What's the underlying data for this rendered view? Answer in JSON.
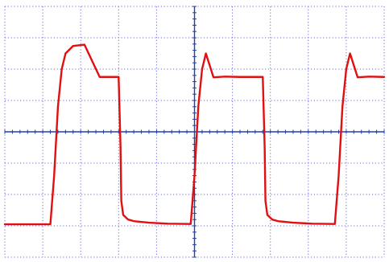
{
  "chart_data": {
    "type": "line",
    "title": "",
    "xlabel": "",
    "ylabel": "",
    "grid": true,
    "xlim": [
      0,
      10
    ],
    "ylim": [
      -4,
      4
    ],
    "divisions": {
      "x": 10,
      "y": 8
    },
    "colors": {
      "background": "#ffffff",
      "grid": "#6b6bd6",
      "axes": "#1f3fb0",
      "trace": "#e01010"
    },
    "series": [
      {
        "x": [
          0.0,
          1.2,
          1.3,
          1.4,
          1.5,
          1.6,
          1.8,
          2.1,
          2.5,
          3.0,
          3.05,
          3.07,
          3.12,
          3.25,
          3.4,
          3.8,
          4.3,
          4.9,
          5.0,
          5.1,
          5.2,
          5.3,
          5.5,
          5.8,
          6.2,
          6.8,
          6.85,
          6.87,
          6.92,
          7.05,
          7.2,
          7.6,
          8.1,
          8.7,
          8.8,
          8.9,
          9.0,
          9.1,
          9.3,
          9.6,
          10.0
        ],
        "y": [
          -2.95,
          -2.95,
          -1.4,
          0.8,
          2.0,
          2.5,
          2.74,
          2.78,
          1.75,
          1.75,
          -0.5,
          -2.2,
          -2.65,
          -2.8,
          -2.85,
          -2.9,
          -2.93,
          -2.94,
          -1.4,
          0.8,
          2.0,
          2.5,
          1.74,
          1.76,
          1.75,
          1.75,
          -0.5,
          -2.2,
          -2.65,
          -2.8,
          -2.85,
          -2.9,
          -2.93,
          -2.94,
          -1.4,
          0.8,
          2.0,
          2.5,
          1.74,
          1.76,
          1.75
        ]
      }
    ]
  }
}
